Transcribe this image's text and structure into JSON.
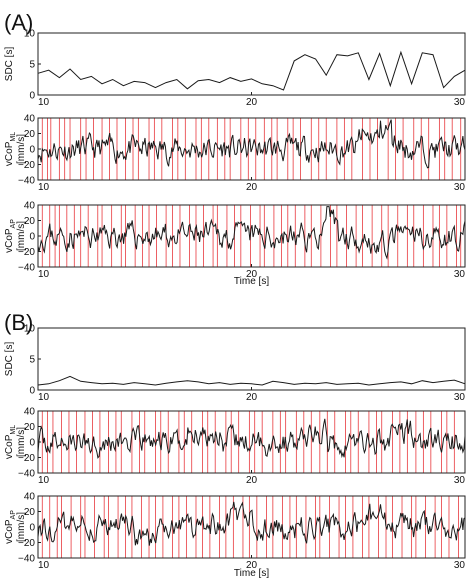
{
  "chart_data": [
    {
      "type": "line",
      "panel_label": "(A)",
      "xlabel": "Time [s]",
      "xlim": [
        10,
        30
      ],
      "xticks": [
        "10",
        "20",
        "30"
      ],
      "subplots": [
        {
          "ylabel": "SDC [s]",
          "ylabel_sub": "",
          "ylim": [
            0,
            10
          ],
          "yticks": [
            "0",
            "5",
            "10"
          ],
          "series": [
            {
              "x": [
                10,
                10.5,
                11,
                11.5,
                12,
                12.5,
                13,
                13.5,
                14,
                14.5,
                15,
                15.5,
                16,
                16.5,
                17,
                17.5,
                18,
                18.5,
                19,
                19.5,
                20,
                20.5,
                21,
                21.5,
                22,
                22.5,
                23,
                23.5,
                24,
                24.5,
                25,
                25.5,
                26,
                26.5,
                27,
                27.5,
                28,
                28.5,
                29,
                29.5,
                30
              ],
              "y": [
                3.5,
                4.0,
                2.8,
                4.2,
                2.5,
                3.0,
                1.8,
                2.5,
                1.5,
                2.2,
                2.0,
                1.2,
                2.0,
                2.5,
                1.0,
                2.3,
                2.5,
                2.0,
                2.8,
                2.2,
                2.6,
                1.8,
                1.5,
                0.8,
                5.5,
                6.5,
                5.8,
                3.2,
                6.5,
                6.3,
                6.8,
                2.5,
                6.7,
                1.5,
                6.9,
                1.8,
                6.8,
                6.5,
                1.2,
                3.0,
                4.0
              ]
            }
          ],
          "events": [
            10.2,
            10.5,
            10.7,
            11.0,
            11.3,
            11.6,
            12.0,
            12.3,
            12.7,
            13.0,
            13.4,
            13.8,
            14.1,
            14.5,
            14.8,
            15.2,
            15.5,
            15.9,
            16.3,
            16.6,
            17.0,
            17.4,
            17.7,
            18.1,
            18.4,
            18.8,
            19.1,
            19.5,
            19.9,
            20.3,
            20.6,
            21.0,
            21.3,
            21.7,
            22.0,
            22.4,
            22.8,
            23.2,
            23.6,
            24.0,
            24.4,
            24.8,
            25.2,
            25.6,
            26.0,
            26.4,
            26.8,
            27.2,
            27.6,
            28.0,
            28.4,
            28.8,
            29.1,
            29.5,
            29.8
          ]
        },
        {
          "ylabel": "vCoP",
          "ylabel_sub": "ML",
          "ylabel_unit": "[mm/s]",
          "ylim": [
            -40,
            40
          ],
          "yticks": [
            "−40",
            "−20",
            "0",
            "20",
            "40"
          ]
        },
        {
          "ylabel": "vCoP",
          "ylabel_sub": "AP",
          "ylabel_unit": "[mm/s]",
          "ylim": [
            -40,
            40
          ],
          "yticks": [
            "−40",
            "−20",
            "0",
            "20",
            "40"
          ]
        }
      ]
    },
    {
      "type": "line",
      "panel_label": "(B)",
      "xlabel": "Time [s]",
      "xlim": [
        10,
        30
      ],
      "xticks": [
        "10",
        "20",
        "30"
      ],
      "subplots": [
        {
          "ylabel": "SDC [s]",
          "ylabel_sub": "",
          "ylim": [
            0,
            10
          ],
          "yticks": [
            "0",
            "5",
            "10"
          ],
          "series": [
            {
              "x": [
                10,
                10.5,
                11,
                11.5,
                12,
                12.5,
                13,
                13.5,
                14,
                14.5,
                15,
                15.5,
                16,
                16.5,
                17,
                17.5,
                18,
                18.5,
                19,
                19.5,
                20,
                20.5,
                21,
                21.5,
                22,
                22.5,
                23,
                23.5,
                24,
                24.5,
                25,
                25.5,
                26,
                26.5,
                27,
                27.5,
                28,
                28.5,
                29,
                29.5,
                30
              ],
              "y": [
                0.8,
                1.0,
                1.5,
                2.2,
                1.4,
                1.2,
                1.0,
                1.1,
                0.9,
                1.2,
                1.0,
                0.8,
                1.1,
                1.3,
                1.5,
                1.3,
                1.0,
                1.2,
                0.9,
                1.1,
                1.0,
                0.8,
                1.4,
                1.2,
                0.9,
                1.1,
                1.0,
                1.2,
                0.9,
                1.0,
                1.1,
                0.8,
                1.0,
                1.2,
                1.3,
                1.0,
                1.5,
                1.2,
                1.4,
                1.6,
                1.0
              ]
            }
          ],
          "events": [
            10.2,
            10.5,
            10.8,
            11.1,
            11.5,
            11.9,
            12.2,
            12.6,
            13.0,
            13.3,
            13.7,
            14.0,
            14.4,
            14.8,
            15.1,
            15.5,
            15.8,
            16.2,
            16.6,
            16.9,
            17.3,
            17.7,
            18.0,
            18.4,
            18.8,
            19.1,
            19.5,
            19.9,
            20.2,
            20.6,
            21.0,
            21.4,
            21.7,
            22.1,
            22.5,
            22.9,
            23.2,
            23.6,
            24.0,
            24.4,
            24.7,
            25.1,
            25.5,
            25.9,
            26.2,
            26.6,
            27.0,
            27.4,
            27.7,
            28.1,
            28.5,
            28.9,
            29.2,
            29.6
          ]
        },
        {
          "ylabel": "vCoP",
          "ylabel_sub": "ML",
          "ylabel_unit": "[mm/s]",
          "ylim": [
            -40,
            40
          ],
          "yticks": [
            "−40",
            "−20",
            "0",
            "20",
            "40"
          ]
        },
        {
          "ylabel": "vCoP",
          "ylabel_sub": "AP",
          "ylabel_unit": "[mm/s]",
          "ylim": [
            -40,
            40
          ],
          "yticks": [
            "−40",
            "−20",
            "0",
            "20",
            "40"
          ]
        }
      ]
    }
  ],
  "colors": {
    "trace": "#1a1a1a",
    "event": "#e8383d"
  }
}
